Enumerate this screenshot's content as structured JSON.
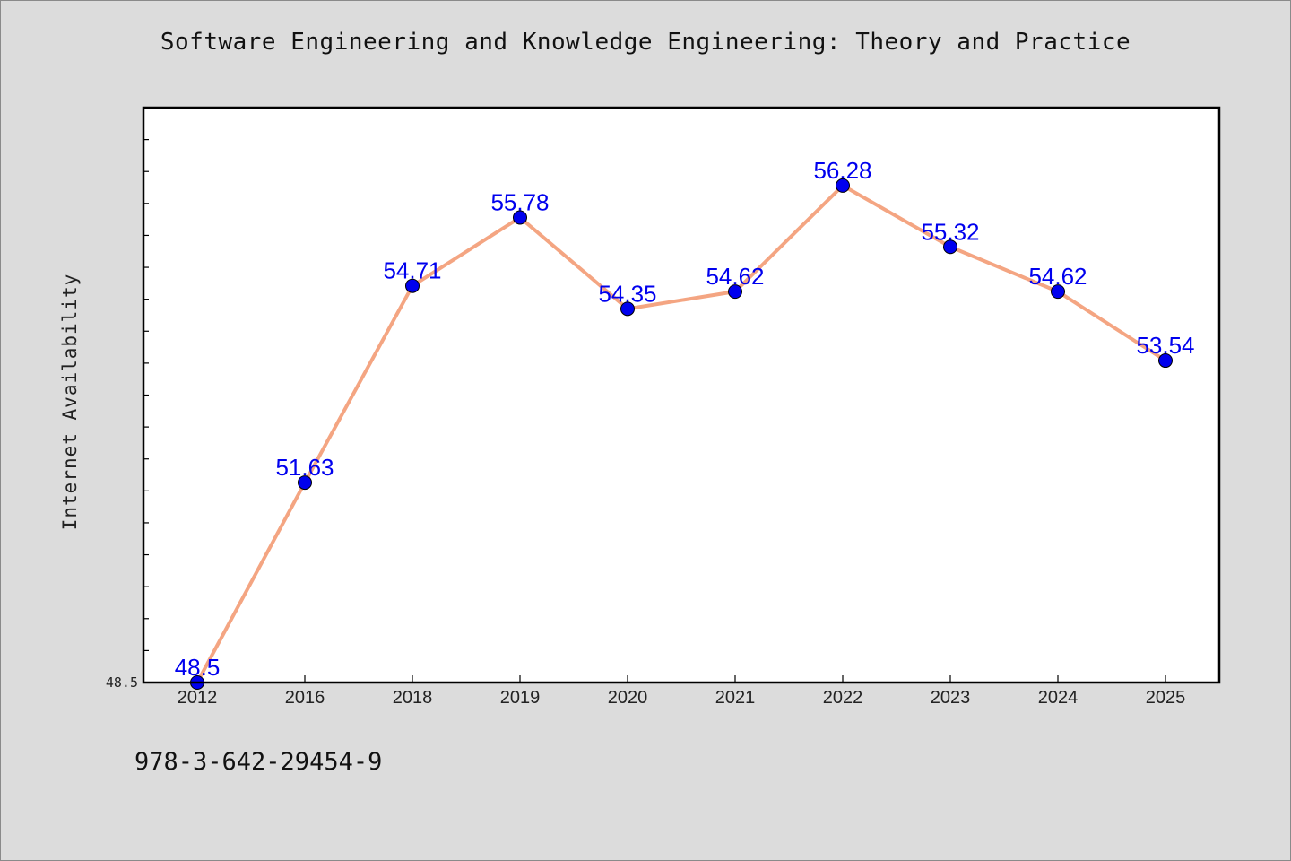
{
  "chart_data": {
    "type": "line",
    "title": "Software Engineering and Knowledge Engineering: Theory and Practice",
    "xlabel": "",
    "ylabel": "Internet Availability",
    "categories": [
      "2012",
      "2016",
      "2018",
      "2019",
      "2020",
      "2021",
      "2022",
      "2023",
      "2024",
      "2025"
    ],
    "series": [
      {
        "values": [
          48.5,
          51.63,
          54.71,
          55.78,
          54.35,
          54.62,
          56.28,
          55.32,
          54.62,
          53.54
        ]
      }
    ],
    "data_labels": [
      "48.5",
      "51.63",
      "54.71",
      "55.78",
      "54.35",
      "54.62",
      "56.28",
      "55.32",
      "54.62",
      "53.54"
    ],
    "ylim": [
      48.5,
      57.5
    ],
    "y_tick_labels": [
      "48.5"
    ],
    "grid": false,
    "colors": {
      "line": "#f4a582",
      "marker": "#0000ee",
      "data_label": "#0000ee",
      "background": "#dcdcdc",
      "plot_area": "#ffffff"
    }
  },
  "footer": {
    "code": "978-3-642-29454-9"
  }
}
